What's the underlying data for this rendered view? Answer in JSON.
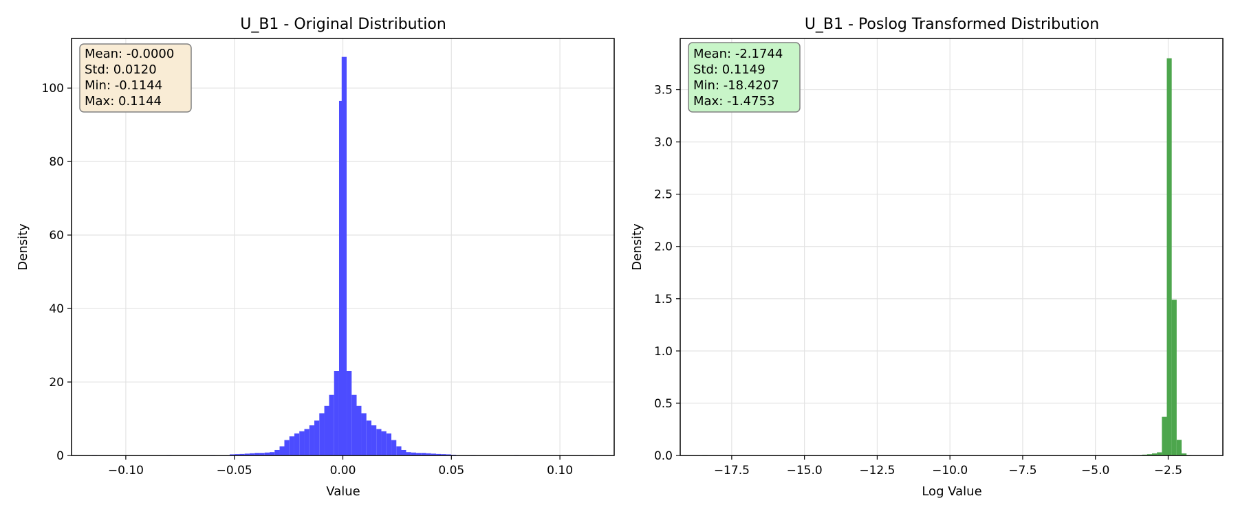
{
  "chart_data": [
    {
      "type": "bar",
      "title": "U_B1 - Original Distribution",
      "xlabel": "Value",
      "ylabel": "Density",
      "xlim": [
        -0.125,
        0.125
      ],
      "ylim": [
        0,
        113.5
      ],
      "xticks": [
        -0.1,
        -0.05,
        0.0,
        0.05,
        0.1
      ],
      "xtick_labels": [
        "−0.10",
        "−0.05",
        "0.00",
        "0.05",
        "0.10"
      ],
      "yticks": [
        0,
        20,
        40,
        60,
        80,
        100
      ],
      "ytick_labels": [
        "0",
        "20",
        "40",
        "60",
        "80",
        "100"
      ],
      "grid": true,
      "color": "#4c4cff",
      "stats_box": {
        "lines": [
          "Mean: -0.0000",
          "Std: 0.0120",
          "Min: -0.1144",
          "Max: 0.1144"
        ],
        "background": "#f9ecd5",
        "placement": "top-left"
      },
      "bin_width": 0.00229,
      "bins": [
        [
          -0.1144,
          0.02
        ],
        [
          -0.08,
          0.05
        ],
        [
          -0.06,
          0.1
        ],
        [
          -0.051,
          0.3
        ],
        [
          -0.0487,
          0.35
        ],
        [
          -0.0464,
          0.4
        ],
        [
          -0.0441,
          0.5
        ],
        [
          -0.0418,
          0.6
        ],
        [
          -0.0395,
          0.7
        ],
        [
          -0.0372,
          0.7
        ],
        [
          -0.0349,
          0.8
        ],
        [
          -0.0326,
          0.9
        ],
        [
          -0.0303,
          1.5
        ],
        [
          -0.028,
          2.5
        ],
        [
          -0.0258,
          4.2
        ],
        [
          -0.0235,
          5.2
        ],
        [
          -0.0212,
          6.0
        ],
        [
          -0.0189,
          6.6
        ],
        [
          -0.0166,
          7.2
        ],
        [
          -0.0143,
          8.2
        ],
        [
          -0.012,
          9.5
        ],
        [
          -0.0097,
          11.5
        ],
        [
          -0.0074,
          13.5
        ],
        [
          -0.0052,
          16.5
        ],
        [
          -0.0029,
          23.0
        ],
        [
          -0.0006,
          96.5
        ],
        [
          0.0006,
          108.5
        ],
        [
          0.0029,
          23.0
        ],
        [
          0.0052,
          16.5
        ],
        [
          0.0074,
          13.5
        ],
        [
          0.0097,
          11.5
        ],
        [
          0.012,
          9.5
        ],
        [
          0.0143,
          8.2
        ],
        [
          0.0166,
          7.2
        ],
        [
          0.0189,
          6.6
        ],
        [
          0.0212,
          6.0
        ],
        [
          0.0235,
          4.2
        ],
        [
          0.0258,
          2.5
        ],
        [
          0.028,
          1.5
        ],
        [
          0.0303,
          0.9
        ],
        [
          0.0326,
          0.8
        ],
        [
          0.0349,
          0.7
        ],
        [
          0.0372,
          0.7
        ],
        [
          0.0395,
          0.6
        ],
        [
          0.0418,
          0.5
        ],
        [
          0.0441,
          0.4
        ],
        [
          0.0464,
          0.35
        ],
        [
          0.0487,
          0.3
        ],
        [
          0.051,
          0.2
        ],
        [
          0.06,
          0.1
        ],
        [
          0.08,
          0.05
        ],
        [
          0.1144,
          0.02
        ]
      ]
    },
    {
      "type": "bar",
      "title": "U_B1 - Poslog Transformed Distribution",
      "xlabel": "Log Value",
      "ylabel": "Density",
      "xlim": [
        -19.27,
        -0.62
      ],
      "ylim": [
        0,
        3.99
      ],
      "xticks": [
        -17.5,
        -15.0,
        -12.5,
        -10.0,
        -7.5,
        -5.0,
        -2.5
      ],
      "xtick_labels": [
        "−17.5",
        "−15.0",
        "−12.5",
        "−10.0",
        "−7.5",
        "−5.0",
        "−2.5"
      ],
      "yticks": [
        0.0,
        0.5,
        1.0,
        1.5,
        2.0,
        2.5,
        3.0,
        3.5
      ],
      "ytick_labels": [
        "0.0",
        "0.5",
        "1.0",
        "1.5",
        "2.0",
        "2.5",
        "3.0",
        "3.5"
      ],
      "grid": true,
      "color": "#4da64d",
      "stats_box": {
        "lines": [
          "Mean: -2.1744",
          "Std: 0.1149",
          "Min: -18.4207",
          "Max: -1.4753"
        ],
        "background": "#c8f5c8",
        "placement": "top-left"
      },
      "bin_width": 0.1695,
      "bins": [
        [
          -18.4207,
          0.001
        ],
        [
          -3.6485,
          0.002
        ],
        [
          -3.479,
          0.004
        ],
        [
          -3.3095,
          0.008
        ],
        [
          -3.14,
          0.012
        ],
        [
          -2.9705,
          0.02
        ],
        [
          -2.801,
          0.03
        ],
        [
          -2.6315,
          0.37
        ],
        [
          -2.462,
          3.8
        ],
        [
          -2.2925,
          1.49
        ],
        [
          -2.123,
          0.15
        ],
        [
          -1.9535,
          0.02
        ],
        [
          -1.784,
          0.004
        ]
      ]
    }
  ]
}
